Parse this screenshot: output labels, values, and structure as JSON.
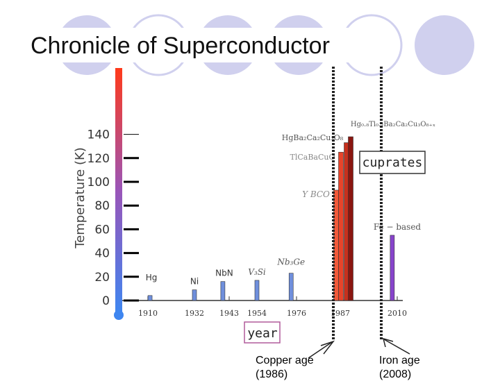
{
  "slide": {
    "title": "Chronicle of Superconductor",
    "caption_copper": "Copper age",
    "caption_copper_year": "(1986)",
    "caption_iron": "Iron age",
    "caption_iron_year": "(2008)"
  },
  "chart_data": {
    "type": "bar",
    "title": "",
    "ylabel": "Temperature (K)",
    "xlabel": "year",
    "ylim": [
      0,
      160
    ],
    "yticks": [
      0,
      20,
      40,
      60,
      80,
      100,
      120,
      140
    ],
    "xticks": [
      "1910",
      "1932",
      "1943",
      "1954",
      "1976",
      "1987",
      "2010"
    ],
    "points": [
      {
        "label": "Hg",
        "year": 1911,
        "tc": 4.2,
        "color": "#6f8fdc"
      },
      {
        "label": "Ni",
        "year": 1932,
        "tc": 9,
        "color": "#6f8fdc"
      },
      {
        "label": "NbN",
        "year": 1941,
        "tc": 16,
        "color": "#6f8fdc"
      },
      {
        "label": "V₃Si",
        "year": 1954,
        "tc": 17,
        "color": "#6f8fdc"
      },
      {
        "label": "Nb₃Ge",
        "year": 1973,
        "tc": 23,
        "color": "#6f8fdc"
      },
      {
        "label": "Y BCO",
        "year": 1987,
        "tc": 93,
        "color": "#f25a3a"
      },
      {
        "label": "TlCaBaCuO",
        "year": 1988,
        "tc": 125,
        "color": "#e8442a"
      },
      {
        "label": "HgBa₂Ca₂Cu₃O₈",
        "year": 1993,
        "tc": 133,
        "color": "#c7301d"
      },
      {
        "label": "Hg₀.₈Tl₀.₂Ba₂Ca₂Cu₃O₈₊ₓ",
        "year": 1994,
        "tc": 138,
        "color": "#8a1610"
      },
      {
        "label": "Fe − based",
        "year": 2008,
        "tc": 55,
        "color": "#8844cc"
      }
    ],
    "group_label": "cuprates",
    "colors": {
      "gradient_top": "#ff3a1a",
      "gradient_mid": "#9a55b8",
      "gradient_bottom": "#3f86f0"
    }
  }
}
